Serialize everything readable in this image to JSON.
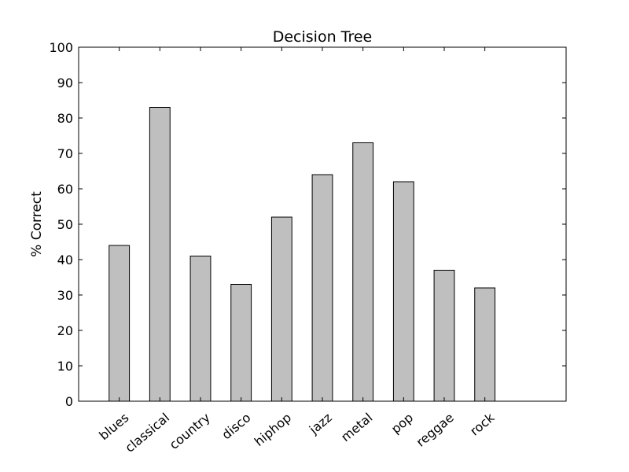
{
  "chart_data": {
    "type": "bar",
    "title": "Decision Tree",
    "xlabel": "",
    "ylabel": "% Correct",
    "categories": [
      "blues",
      "classical",
      "country",
      "disco",
      "hiphop",
      "jazz",
      "metal",
      "pop",
      "reggae",
      "rock"
    ],
    "values": [
      44,
      83,
      41,
      33,
      52,
      64,
      73,
      62,
      37,
      32
    ],
    "ylim": [
      0,
      100
    ],
    "yticks": [
      0,
      10,
      20,
      30,
      40,
      50,
      60,
      70,
      80,
      90,
      100
    ],
    "bar_color": "#bfbfbf",
    "edge_color": "#000000",
    "grid": false,
    "legend": "none"
  }
}
